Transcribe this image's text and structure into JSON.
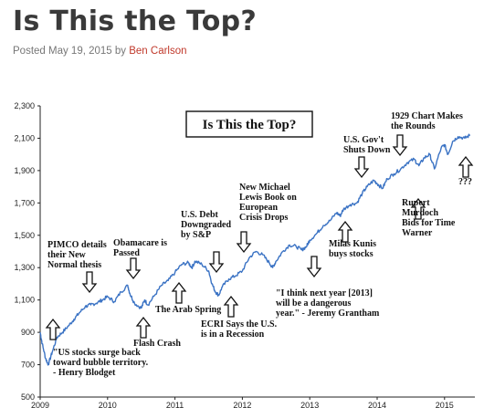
{
  "post": {
    "title": "Is This the Top?",
    "posted_label": "Posted May 19, 2015 by",
    "author": "Ben Carlson"
  },
  "colors": {
    "line": "#3b73c4",
    "author_link": "#c0392b",
    "title": "#3a3a3a"
  },
  "chart_data": {
    "type": "line",
    "title": "Is This the Top?",
    "xlim": [
      2009.0,
      2015.45
    ],
    "ylim": [
      500,
      2300
    ],
    "y_ticks": [
      500,
      700,
      900,
      1100,
      1300,
      1500,
      1700,
      1900,
      2100,
      2300
    ],
    "y_tick_labels": [
      "500",
      "700",
      "900",
      "1,100",
      "1,300",
      "1,500",
      "1,700",
      "1,900",
      "2,100",
      "2,300"
    ],
    "x_ticks": [
      2009,
      2010,
      2011,
      2012,
      2013,
      2014,
      2015
    ],
    "x_tick_labels": [
      "2009",
      "2010",
      "2011",
      "2012",
      "2013",
      "2014",
      "2015"
    ],
    "grid": false,
    "series": [
      {
        "x": [
          2009.0,
          2009.03,
          2009.08,
          2009.12,
          2009.18,
          2009.25,
          2009.33,
          2009.42,
          2009.5,
          2009.58,
          2009.67,
          2009.75,
          2009.83,
          2009.92,
          2010.0,
          2010.1,
          2010.2,
          2010.3,
          2010.33,
          2010.4,
          2010.5,
          2010.55,
          2010.6,
          2010.7,
          2010.8,
          2010.9,
          2011.0,
          2011.1,
          2011.2,
          2011.25,
          2011.3,
          2011.4,
          2011.5,
          2011.55,
          2011.6,
          2011.65,
          2011.7,
          2011.8,
          2011.9,
          2012.0,
          2012.1,
          2012.2,
          2012.3,
          2012.4,
          2012.45,
          2012.5,
          2012.6,
          2012.7,
          2012.8,
          2012.88,
          2012.95,
          2013.0,
          2013.1,
          2013.2,
          2013.3,
          2013.4,
          2013.45,
          2013.5,
          2013.6,
          2013.7,
          2013.78,
          2013.85,
          2013.95,
          2014.0,
          2014.08,
          2014.15,
          2014.25,
          2014.35,
          2014.45,
          2014.55,
          2014.62,
          2014.7,
          2014.78,
          2014.85,
          2014.95,
          2015.0,
          2015.05,
          2015.12,
          2015.2,
          2015.3,
          2015.38
        ],
        "values": [
          900,
          830,
          740,
          700,
          780,
          870,
          900,
          940,
          980,
          1020,
          1060,
          1070,
          1080,
          1100,
          1120,
          1090,
          1150,
          1190,
          1140,
          1080,
          1050,
          1100,
          1070,
          1130,
          1190,
          1220,
          1270,
          1320,
          1330,
          1300,
          1340,
          1320,
          1280,
          1200,
          1150,
          1130,
          1180,
          1230,
          1250,
          1280,
          1360,
          1400,
          1380,
          1330,
          1300,
          1340,
          1400,
          1440,
          1430,
          1410,
          1430,
          1470,
          1510,
          1560,
          1590,
          1640,
          1620,
          1660,
          1690,
          1700,
          1760,
          1800,
          1840,
          1820,
          1790,
          1850,
          1880,
          1910,
          1950,
          1970,
          1930,
          1980,
          2000,
          1910,
          2040,
          2060,
          2000,
          2080,
          2110,
          2100,
          2120
        ]
      }
    ],
    "annotations": [
      {
        "label": "\"US stocks surge back toward bubble territory.\" - Henry Blodget",
        "arrow": "up"
      },
      {
        "label": "PIMCO details their New Normal thesis",
        "arrow": "down"
      },
      {
        "label": "Obamacare is Passed",
        "arrow": "down"
      },
      {
        "label": "Flash Crash",
        "arrow": "up"
      },
      {
        "label": "The Arab Spring",
        "arrow": "up"
      },
      {
        "label": "U.S. Debt Downgraded by S&P",
        "arrow": "down"
      },
      {
        "label": "ECRI Says the U.S. is in a Recession",
        "arrow": "up"
      },
      {
        "label": "New Michael Lewis Book on European Crisis Drops",
        "arrow": "down"
      },
      {
        "label": "\"I think next year [2013] will be a dangerous year.\" - Jeremy Grantham",
        "arrow": "down"
      },
      {
        "label": "Milas Kunis buys stocks",
        "arrow": "up"
      },
      {
        "label": "U.S. Gov't Shuts Down",
        "arrow": "down"
      },
      {
        "label": "1929 Chart Makes the Rounds",
        "arrow": "down"
      },
      {
        "label": "Rupert Murdoch Bids for Time Warner",
        "arrow": "up"
      },
      {
        "label": "???",
        "arrow": "up"
      }
    ]
  }
}
